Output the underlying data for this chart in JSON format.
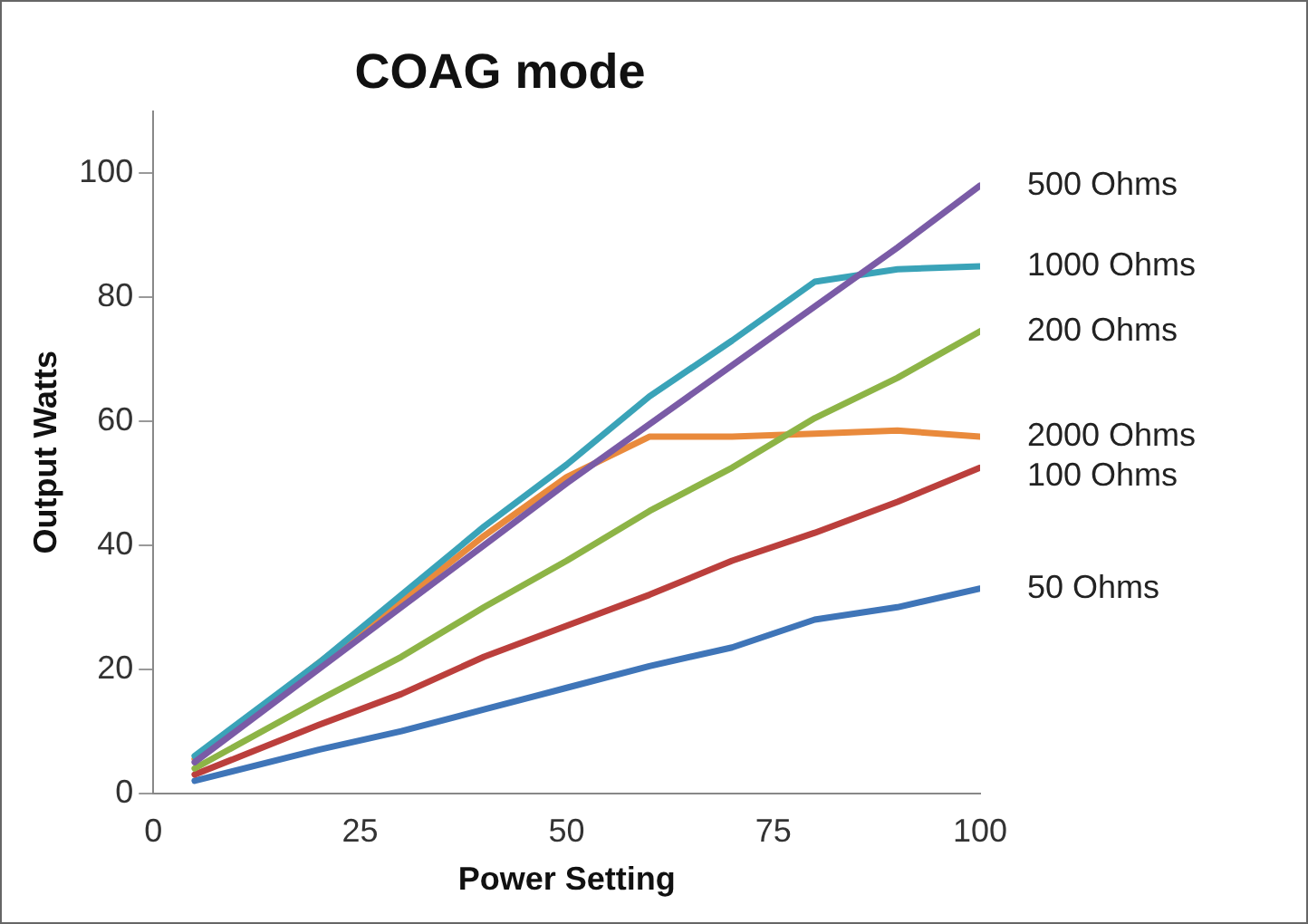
{
  "chart_data": {
    "type": "line",
    "title": "COAG mode",
    "xlabel": "Power Setting",
    "ylabel": "Output Watts",
    "x": [
      5,
      20,
      30,
      40,
      50,
      60,
      70,
      80,
      90,
      100
    ],
    "xlim": [
      0,
      100
    ],
    "xticks": [
      0,
      25,
      50,
      75,
      100
    ],
    "ylim": [
      0,
      110
    ],
    "yticks": [
      0,
      20,
      40,
      60,
      80,
      100
    ],
    "grid": false,
    "legend": false,
    "marker": "none",
    "line_style": "solid",
    "series": [
      {
        "name": "500 Ohms",
        "color": "#7a5ba6",
        "values": [
          5,
          20,
          30,
          40,
          50,
          59.5,
          69,
          78.5,
          88,
          98
        ]
      },
      {
        "name": "1000 Ohms",
        "color": "#3aa3b8",
        "values": [
          6,
          21,
          32,
          43,
          53,
          64,
          73,
          82.5,
          84.5,
          85
        ]
      },
      {
        "name": "200 Ohms",
        "color": "#8db446",
        "values": [
          4,
          15,
          22,
          30,
          37.5,
          45.5,
          52.5,
          60.5,
          67,
          74.5
        ]
      },
      {
        "name": "2000 Ohms",
        "color": "#e98a3c",
        "values": [
          5.5,
          21,
          31,
          41.5,
          51,
          57.5,
          57.5,
          58,
          58.5,
          57.5
        ]
      },
      {
        "name": "100 Ohms",
        "color": "#bb3f3c",
        "values": [
          3,
          11,
          16,
          22,
          27,
          32,
          37.5,
          42,
          47,
          52.5
        ]
      },
      {
        "name": "50 Ohms",
        "color": "#3f75b8",
        "values": [
          2,
          7,
          10,
          13.5,
          17,
          20.5,
          23.5,
          28,
          30,
          33
        ]
      }
    ]
  }
}
